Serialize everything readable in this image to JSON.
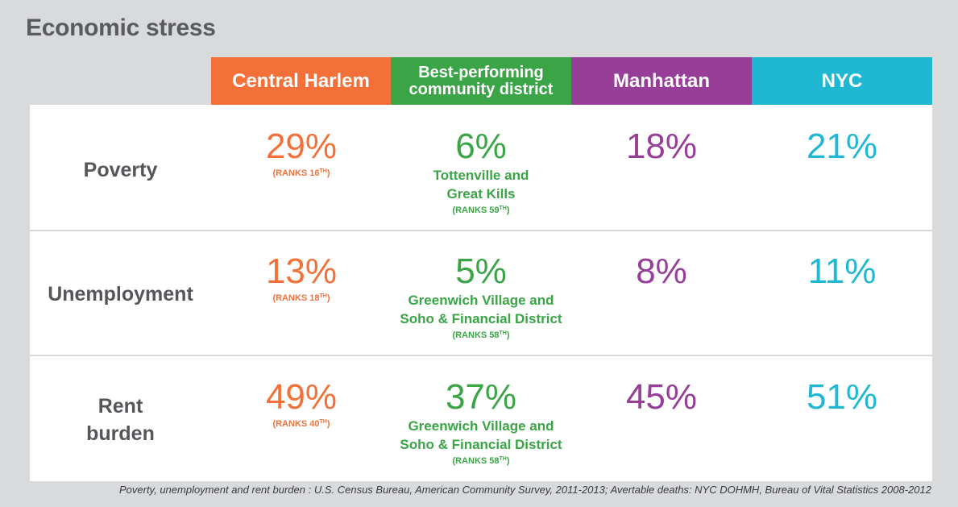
{
  "title": "Economic stress",
  "colors": {
    "central_harlem": "#f37139",
    "best_performing": "#3aa447",
    "manhattan": "#973f98",
    "nyc": "#1fb7d2",
    "label": "#55565a"
  },
  "headers": {
    "central_harlem": "Central Harlem",
    "best_line1": "Best-performing",
    "best_line2": "community district",
    "manhattan": "Manhattan",
    "nyc": "NYC"
  },
  "rows": [
    {
      "label_line1": "Poverty",
      "label_line2": "",
      "harlem_value": "29%",
      "harlem_rank": "(RANKS 16",
      "harlem_rank_sup": "TH",
      "harlem_rank_close": ")",
      "best_value": "6%",
      "best_place_line1": "Tottenville and",
      "best_place_line2": "Great Kills",
      "best_rank": "(RANKS 59",
      "best_rank_sup": "TH",
      "best_rank_close": ")",
      "manhattan_value": "18%",
      "nyc_value": "21%"
    },
    {
      "label_line1": "Unemployment",
      "label_line2": "",
      "harlem_value": "13%",
      "harlem_rank": "(RANKS 18",
      "harlem_rank_sup": "TH",
      "harlem_rank_close": ")",
      "best_value": "5%",
      "best_place_line1": "Greenwich Village and",
      "best_place_line2": "Soho & Financial District",
      "best_rank": "(RANKS 58",
      "best_rank_sup": "TH",
      "best_rank_close": ")",
      "manhattan_value": "8%",
      "nyc_value": "11%"
    },
    {
      "label_line1": "Rent",
      "label_line2": "burden",
      "harlem_value": "49%",
      "harlem_rank": "(RANKS 40",
      "harlem_rank_sup": "TH",
      "harlem_rank_close": ")",
      "best_value": "37%",
      "best_place_line1": "Greenwich Village and",
      "best_place_line2": "Soho & Financial District",
      "best_rank": "(RANKS 58",
      "best_rank_sup": "TH",
      "best_rank_close": ")",
      "manhattan_value": "45%",
      "nyc_value": "51%"
    }
  ],
  "footer": "Poverty, unemployment and rent burden : U.S. Census Bureau, American Community Survey, 2011-2013; Avertable deaths: NYC DOHMH, Bureau of Vital Statistics 2008-2012"
}
